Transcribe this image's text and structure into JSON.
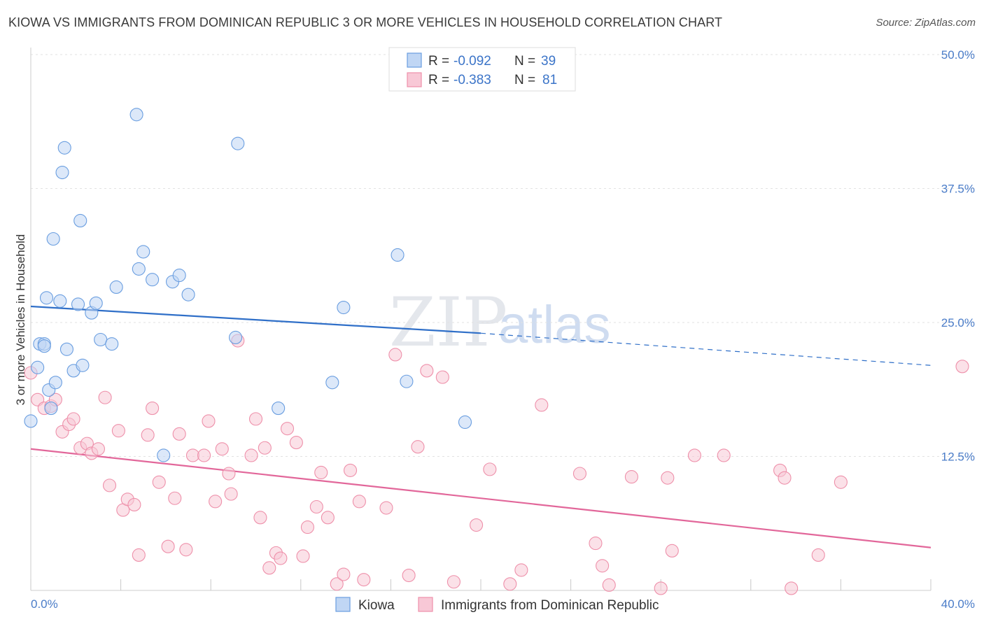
{
  "header": {
    "title": "KIOWA VS IMMIGRANTS FROM DOMINICAN REPUBLIC 3 OR MORE VEHICLES IN HOUSEHOLD CORRELATION CHART",
    "source": "Source: ZipAtlas.com"
  },
  "legend": {
    "rows": [
      {
        "r_label": "R =",
        "r_value": "-0.092",
        "n_label": "N =",
        "n_value": "39"
      },
      {
        "r_label": "R =",
        "r_value": "-0.383",
        "n_label": "N =",
        "n_value": "81"
      }
    ]
  },
  "bottom_legend": [
    "Kiowa",
    "Immigrants from Dominican Republic"
  ],
  "watermark": {
    "zip": "ZIP",
    "atlas": "atlas"
  },
  "chart_data": {
    "type": "scatter",
    "title": "KIOWA VS IMMIGRANTS FROM DOMINICAN REPUBLIC 3 OR MORE VEHICLES IN HOUSEHOLD CORRELATION CHART",
    "xlabel": "",
    "ylabel": "3 or more Vehicles in Household",
    "xlim": [
      0,
      40
    ],
    "ylim": [
      0,
      50
    ],
    "x_tick_labels": [
      "0.0%",
      "40.0%"
    ],
    "y_ticks": [
      12.5,
      25.0,
      37.5,
      50.0
    ],
    "y_tick_labels": [
      "12.5%",
      "25.0%",
      "37.5%",
      "50.0%"
    ],
    "grid": true,
    "legend_position": "top-center",
    "colors": {
      "kiowa": "#6a9ee0",
      "dominican": "#ee90aa",
      "kiowa_line": "#2f6fc8",
      "dominican_line": "#e2679a"
    },
    "series": [
      {
        "name": "Kiowa",
        "r": -0.092,
        "n": 39,
        "trend": {
          "x0": 0,
          "y0": 26.5,
          "x1": 20,
          "y1": 24.0,
          "dashed_to_x": 40,
          "dashed_to_y": 21.0
        },
        "points": [
          [
            0.0,
            15.8
          ],
          [
            0.3,
            20.8
          ],
          [
            0.4,
            23.0
          ],
          [
            0.6,
            23.0
          ],
          [
            0.6,
            22.8
          ],
          [
            0.7,
            27.3
          ],
          [
            0.8,
            18.7
          ],
          [
            0.9,
            17.0
          ],
          [
            1.0,
            32.8
          ],
          [
            1.1,
            19.4
          ],
          [
            1.3,
            27.0
          ],
          [
            1.4,
            39.0
          ],
          [
            1.5,
            41.3
          ],
          [
            1.6,
            22.5
          ],
          [
            1.9,
            20.5
          ],
          [
            2.1,
            26.7
          ],
          [
            2.2,
            34.5
          ],
          [
            2.3,
            21.0
          ],
          [
            2.7,
            25.9
          ],
          [
            2.9,
            26.8
          ],
          [
            3.1,
            23.4
          ],
          [
            3.6,
            23.0
          ],
          [
            3.8,
            28.3
          ],
          [
            4.7,
            44.4
          ],
          [
            4.8,
            30.0
          ],
          [
            5.0,
            31.6
          ],
          [
            5.4,
            29.0
          ],
          [
            5.9,
            12.6
          ],
          [
            6.3,
            28.8
          ],
          [
            6.6,
            29.4
          ],
          [
            7.0,
            27.6
          ],
          [
            9.1,
            23.6
          ],
          [
            9.2,
            41.7
          ],
          [
            11.0,
            17.0
          ],
          [
            13.4,
            19.4
          ],
          [
            13.9,
            26.4
          ],
          [
            16.3,
            31.3
          ],
          [
            16.7,
            19.5
          ],
          [
            19.3,
            15.7
          ]
        ]
      },
      {
        "name": "Immigrants from Dominican Republic",
        "r": -0.383,
        "n": 81,
        "trend": {
          "x0": 0,
          "y0": 13.2,
          "x1": 40,
          "y1": 4.0
        },
        "points": [
          [
            0.0,
            20.3
          ],
          [
            0.3,
            17.8
          ],
          [
            0.6,
            17.0
          ],
          [
            0.9,
            17.2
          ],
          [
            1.1,
            17.8
          ],
          [
            1.4,
            14.8
          ],
          [
            1.7,
            15.5
          ],
          [
            1.9,
            16.0
          ],
          [
            2.2,
            13.3
          ],
          [
            2.5,
            13.7
          ],
          [
            2.7,
            12.8
          ],
          [
            3.0,
            13.2
          ],
          [
            3.3,
            18.0
          ],
          [
            3.5,
            9.8
          ],
          [
            3.9,
            14.9
          ],
          [
            4.1,
            7.5
          ],
          [
            4.3,
            8.5
          ],
          [
            4.6,
            8.0
          ],
          [
            4.8,
            3.3
          ],
          [
            5.2,
            14.5
          ],
          [
            5.4,
            17.0
          ],
          [
            5.7,
            10.1
          ],
          [
            6.1,
            4.1
          ],
          [
            6.4,
            8.6
          ],
          [
            6.6,
            14.6
          ],
          [
            6.9,
            3.8
          ],
          [
            7.2,
            12.6
          ],
          [
            7.7,
            12.6
          ],
          [
            7.9,
            15.8
          ],
          [
            8.2,
            8.3
          ],
          [
            8.5,
            13.2
          ],
          [
            8.8,
            10.9
          ],
          [
            8.9,
            9.0
          ],
          [
            9.2,
            23.3
          ],
          [
            9.8,
            12.6
          ],
          [
            10.0,
            16.0
          ],
          [
            10.2,
            6.8
          ],
          [
            10.4,
            13.3
          ],
          [
            10.6,
            2.1
          ],
          [
            10.9,
            3.5
          ],
          [
            11.1,
            3.0
          ],
          [
            11.4,
            15.1
          ],
          [
            11.8,
            13.8
          ],
          [
            12.1,
            3.2
          ],
          [
            12.3,
            5.9
          ],
          [
            12.7,
            7.8
          ],
          [
            12.9,
            11.0
          ],
          [
            13.2,
            6.8
          ],
          [
            13.6,
            0.6
          ],
          [
            13.9,
            1.5
          ],
          [
            14.2,
            11.2
          ],
          [
            14.6,
            8.3
          ],
          [
            14.8,
            1.0
          ],
          [
            15.8,
            7.7
          ],
          [
            16.2,
            22.0
          ],
          [
            16.8,
            1.4
          ],
          [
            17.2,
            13.4
          ],
          [
            17.6,
            20.5
          ],
          [
            18.3,
            19.9
          ],
          [
            18.8,
            0.8
          ],
          [
            19.8,
            6.1
          ],
          [
            20.4,
            11.3
          ],
          [
            21.3,
            0.6
          ],
          [
            21.8,
            1.9
          ],
          [
            22.7,
            17.3
          ],
          [
            24.4,
            10.9
          ],
          [
            25.1,
            4.4
          ],
          [
            25.4,
            2.3
          ],
          [
            25.7,
            0.5
          ],
          [
            26.7,
            10.6
          ],
          [
            28.0,
            0.2
          ],
          [
            28.3,
            10.5
          ],
          [
            28.5,
            3.7
          ],
          [
            29.5,
            12.6
          ],
          [
            30.8,
            12.6
          ],
          [
            33.3,
            11.2
          ],
          [
            33.5,
            10.5
          ],
          [
            33.8,
            0.2
          ],
          [
            35.0,
            3.3
          ],
          [
            36.0,
            10.1
          ],
          [
            41.4,
            20.9
          ]
        ]
      }
    ]
  }
}
